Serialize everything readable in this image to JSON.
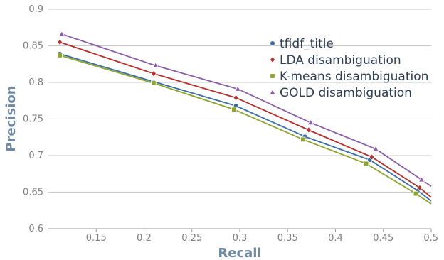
{
  "chart_data": {
    "type": "line",
    "xlabel": "Recall",
    "ylabel": "Precision",
    "xlim": [
      0.1,
      0.5
    ],
    "ylim": [
      0.6,
      0.9
    ],
    "x_ticks": [
      0.15,
      0.2,
      0.25,
      0.3,
      0.35,
      0.4,
      0.45,
      0.5
    ],
    "x_tick_labels": [
      "0.15",
      "0.2",
      "0.25",
      "0.3",
      "0.35",
      "0.4",
      "0.45",
      "0.5"
    ],
    "y_ticks": [
      0.6,
      0.65,
      0.7,
      0.75,
      0.8,
      0.85,
      0.9
    ],
    "y_tick_labels": [
      "0.6",
      "0.65",
      "0.7",
      "0.75",
      "0.8",
      "0.85",
      "0.9"
    ],
    "grid": "horizontal",
    "legend_position": "top-right",
    "series": [
      {
        "name": "tfidf_title",
        "color": "#3a6ea5",
        "marker": "circle",
        "points": [
          [
            0.112,
            0.839
          ],
          [
            0.21,
            0.801
          ],
          [
            0.296,
            0.768
          ],
          [
            0.368,
            0.726
          ],
          [
            0.436,
            0.694
          ],
          [
            0.486,
            0.652
          ],
          [
            0.5,
            0.638
          ]
        ]
      },
      {
        "name": "LDA disambiguation",
        "color": "#b5302d",
        "marker": "diamond",
        "points": [
          [
            0.112,
            0.855
          ],
          [
            0.21,
            0.812
          ],
          [
            0.296,
            0.779
          ],
          [
            0.372,
            0.735
          ],
          [
            0.438,
            0.698
          ],
          [
            0.488,
            0.656
          ],
          [
            0.5,
            0.643
          ]
        ]
      },
      {
        "name": "K-means disambiguation",
        "color": "#8da42e",
        "marker": "square",
        "points": [
          [
            0.112,
            0.837
          ],
          [
            0.21,
            0.799
          ],
          [
            0.294,
            0.763
          ],
          [
            0.366,
            0.722
          ],
          [
            0.432,
            0.689
          ],
          [
            0.484,
            0.648
          ],
          [
            0.5,
            0.634
          ]
        ]
      },
      {
        "name": "GOLD disambiguation",
        "color": "#8a5ea8",
        "marker": "triangle",
        "points": [
          [
            0.114,
            0.866
          ],
          [
            0.212,
            0.823
          ],
          [
            0.298,
            0.791
          ],
          [
            0.374,
            0.745
          ],
          [
            0.442,
            0.709
          ],
          [
            0.49,
            0.667
          ],
          [
            0.5,
            0.658
          ]
        ]
      }
    ]
  }
}
